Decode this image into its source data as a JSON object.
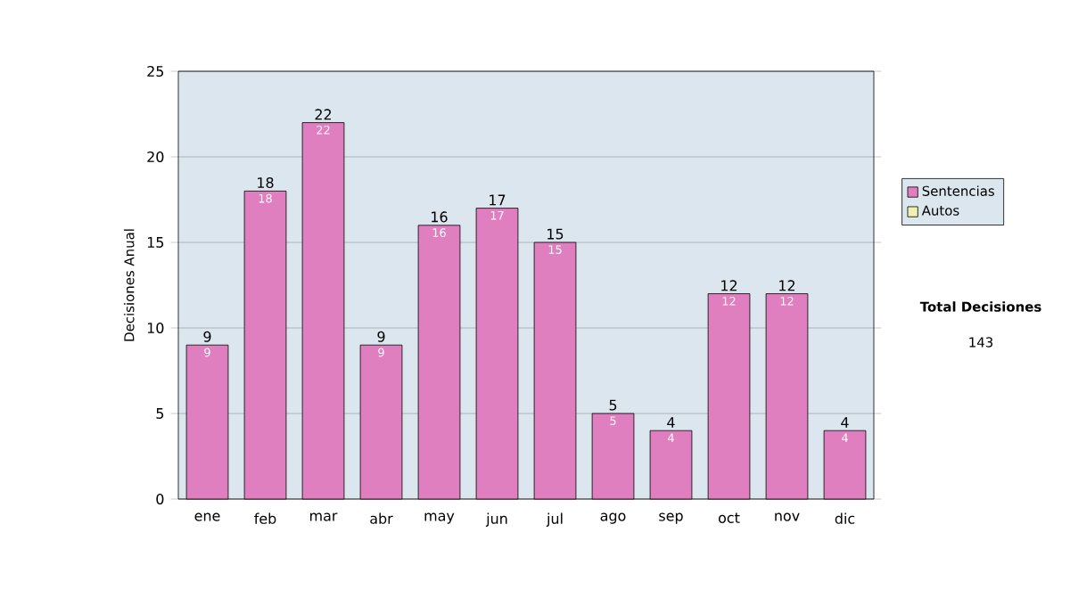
{
  "chart_data": {
    "type": "bar",
    "ylabel": "Decisiones Anual",
    "categories": [
      "ene",
      "feb",
      "mar",
      "abr",
      "may",
      "jun",
      "jul",
      "ago",
      "sep",
      "oct",
      "nov",
      "dic"
    ],
    "series": [
      {
        "name": "Sentencias",
        "color": "#e07fc0",
        "values": [
          9,
          18,
          22,
          9,
          16,
          17,
          15,
          5,
          4,
          12,
          12,
          4
        ]
      },
      {
        "name": "Autos",
        "color": "#f0f0b0",
        "values": [
          null,
          null,
          null,
          null,
          null,
          null,
          null,
          null,
          null,
          null,
          null,
          null
        ]
      }
    ],
    "totals": [
      "9",
      "18",
      "22",
      "9",
      "16",
      "17",
      "15",
      "5",
      "4",
      "12",
      "12",
      "4"
    ],
    "data_labels": true,
    "ylim": [
      0,
      25
    ],
    "yticks": [
      0,
      5,
      10,
      15,
      20,
      25
    ],
    "grid": "y",
    "legend": "right",
    "annotations": [
      "Total Decisiones",
      "143"
    ]
  }
}
